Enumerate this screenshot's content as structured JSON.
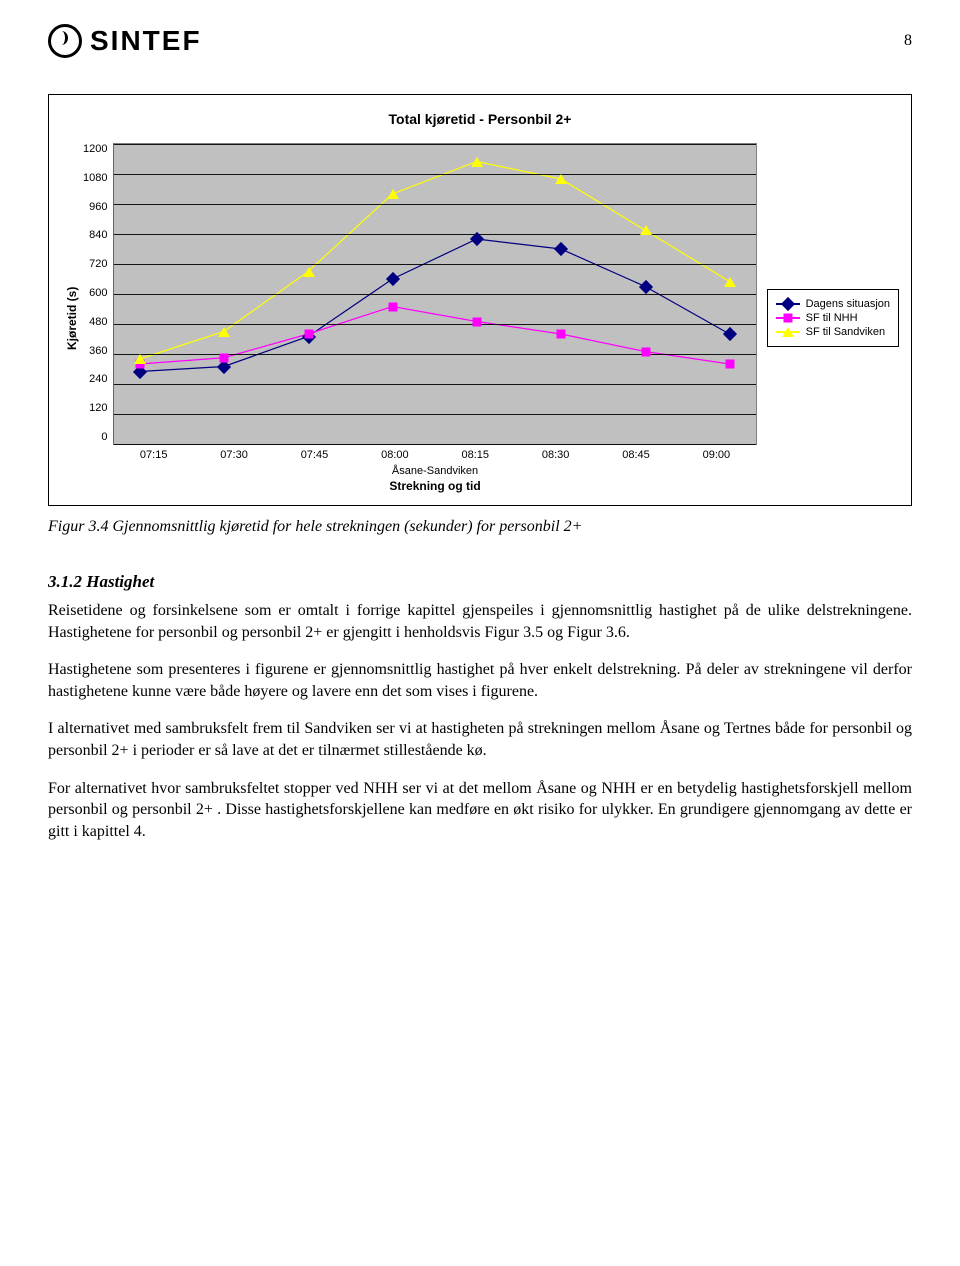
{
  "page_number": "8",
  "logo_text": "SINTEF",
  "chart": {
    "type": "line",
    "title": "Total kjøretid - Personbil 2+",
    "ylabel": "Kjøretid (s)",
    "xlabel": "Strekning og tid",
    "xsublabel": "Åsane-Sandviken",
    "ylim": [
      0,
      1200
    ],
    "yticks": [
      1200,
      1080,
      960,
      840,
      720,
      600,
      480,
      360,
      240,
      120,
      0
    ],
    "xticks": [
      "07:15",
      "07:30",
      "07:45",
      "08:00",
      "08:15",
      "08:30",
      "08:45",
      "09:00"
    ],
    "background_color": "#c0c0c0",
    "grid_color": "#000000",
    "series": [
      {
        "name": "Dagens situasjon",
        "color": "#000080",
        "marker": "diamond",
        "line_width": 2,
        "values": [
          290,
          310,
          430,
          660,
          820,
          780,
          630,
          440
        ]
      },
      {
        "name": "SF til NHH",
        "color": "#ff00ff",
        "marker": "square",
        "line_width": 2,
        "values": [
          320,
          345,
          440,
          550,
          490,
          440,
          370,
          320
        ]
      },
      {
        "name": "SF til Sandviken",
        "color": "#ffff00",
        "marker": "triangle",
        "line_width": 2,
        "values": [
          340,
          450,
          690,
          1000,
          1130,
          1060,
          855,
          650
        ]
      }
    ],
    "legend_position": "right",
    "title_fontsize": 14,
    "label_fontsize": 12,
    "tick_fontsize": 11
  },
  "caption": "Figur 3.4 Gjennomsnittlig kjøretid for hele strekningen (sekunder) for personbil 2+",
  "section_heading": "3.1.2   Hastighet",
  "paragraphs": [
    "Reisetidene og forsinkelsene som er omtalt i forrige kapittel gjenspeiles i gjennomsnittlig hastighet på de ulike delstrekningene. Hastighetene for personbil og personbil 2+ er gjengitt i henholdsvis Figur 3.5 og Figur 3.6.",
    "Hastighetene som presenteres i figurene er gjennomsnittlig hastighet på hver enkelt delstrekning. På deler av strekningene vil derfor hastighetene kunne være både høyere og lavere enn det som vises i figurene.",
    "I alternativet med sambruksfelt frem til Sandviken ser vi at hastigheten på strekningen mellom Åsane og Tertnes både for personbil og personbil 2+ i perioder er så lave at det er tilnærmet stillestående kø.",
    "For alternativet hvor sambruksfeltet stopper ved NHH ser vi at det mellom Åsane og NHH er en betydelig hastighetsforskjell mellom personbil og personbil 2+ . Disse hastighetsforskjellene kan medføre en økt risiko for ulykker. En grundigere gjennomgang av dette er gitt i kapittel 4."
  ]
}
